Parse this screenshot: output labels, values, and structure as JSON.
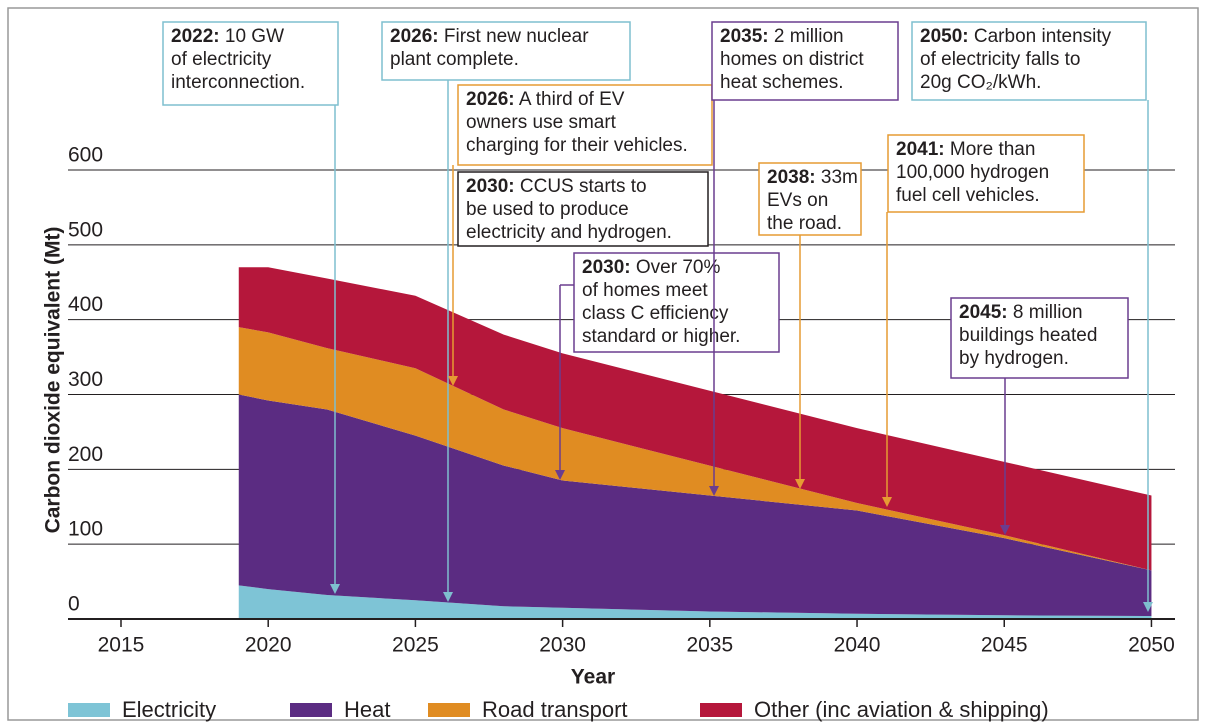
{
  "chart_data": {
    "type": "stacked_area",
    "x_label": "Year",
    "y_label": "Carbon dioxide equivalent (Mt)",
    "x": [
      2019,
      2020,
      2022,
      2025,
      2028,
      2030,
      2035,
      2040,
      2045,
      2050
    ],
    "series": [
      {
        "name": "Electricity",
        "color": "#7ec4d6",
        "values": [
          45,
          40,
          32,
          25,
          17,
          15,
          10,
          7,
          5,
          4
        ]
      },
      {
        "name": "Heat",
        "color": "#5b2c82",
        "values": [
          255,
          252,
          248,
          220,
          188,
          170,
          155,
          138,
          103,
          61
        ]
      },
      {
        "name": "Road transport",
        "color": "#e08c22",
        "values": [
          90,
          91,
          82,
          90,
          75,
          70,
          40,
          10,
          4,
          0
        ]
      },
      {
        "name": "Other (inc aviation & shipping)",
        "color": "#b5173b",
        "values": [
          80,
          87,
          93,
          97,
          100,
          100,
          100,
          100,
          98,
          100
        ]
      }
    ],
    "xlim": [
      2013.2,
      2050.8
    ],
    "xticks": [
      2015,
      2020,
      2025,
      2030,
      2035,
      2040,
      2045,
      2050
    ],
    "ylim": [
      0,
      600
    ],
    "yticks": [
      0,
      100,
      200,
      300,
      400,
      500,
      600
    ],
    "grid": true,
    "legend": "bottom",
    "annotations": [
      {
        "year": "2022:",
        "lines": [
          "10 GW",
          "of electricity",
          "interconnection."
        ]
      },
      {
        "year": "2026:",
        "lines": [
          "First new nuclear",
          "plant complete."
        ]
      },
      {
        "year": "2026:",
        "lines": [
          "A third of EV",
          "owners use smart",
          "charging for their vehicles."
        ]
      },
      {
        "year": "2030:",
        "lines": [
          "CCUS starts to",
          "be used to produce",
          "electricity and hydrogen."
        ]
      },
      {
        "year": "2030:",
        "lines": [
          "Over 70%",
          "of homes meet",
          "class C efficiency",
          "standard or higher."
        ]
      },
      {
        "year": "2035:",
        "lines": [
          "2 million",
          "homes on district",
          "heat schemes."
        ]
      },
      {
        "year": "2050:",
        "lines": [
          "Carbon intensity",
          "of electricity falls to",
          "20g CO₂/kWh."
        ]
      },
      {
        "year": "2038:",
        "lines": [
          "33m",
          "EVs on",
          "the road."
        ]
      },
      {
        "year": "2041:",
        "lines": [
          "More than",
          "100,000 hydrogen",
          "fuel cell vehicles."
        ]
      },
      {
        "year": "2045:",
        "lines": [
          "8 million",
          "buildings heated",
          "by hydrogen."
        ]
      }
    ]
  }
}
